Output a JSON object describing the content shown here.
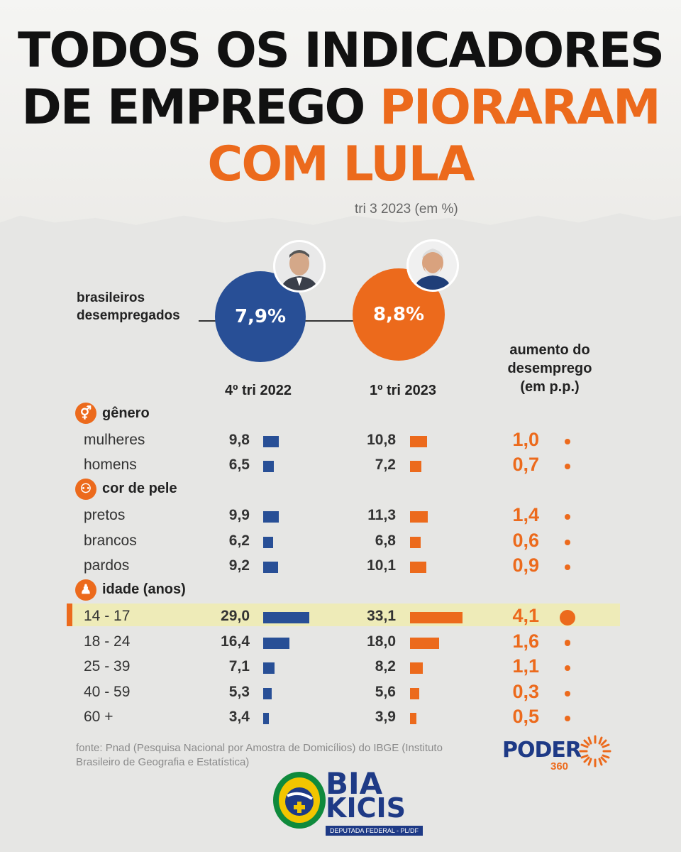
{
  "headline": {
    "line1": "TODOS OS INDICADORES",
    "line2_prefix": "DE EMPREGO ",
    "line2_highlight": "PIORARAM",
    "line3": "COM LULA"
  },
  "partial_note": "tri   3 2023 (em %)",
  "main_label_line1": "brasileiros",
  "main_label_line2": "desempregados",
  "columns": {
    "period1": "4º tri 2022",
    "period2": "1º tri 2023",
    "increase_line1": "aumento do",
    "increase_line2": "desemprego",
    "increase_line3": "(em p.p.)"
  },
  "colors": {
    "blue": "#284f96",
    "orange": "#ec6a1c"
  },
  "chart_data": {
    "type": "bar",
    "unit": "%",
    "summary": {
      "label": "brasileiros desempregados",
      "period1_value": "7,9%",
      "period2_value": "8,8%"
    },
    "sections": [
      {
        "title": "gênero",
        "icon": "gender-icon",
        "rows": [
          {
            "label": "mulheres",
            "v1": "9,8",
            "v2": "10,8",
            "inc": "1,0"
          },
          {
            "label": "homens",
            "v1": "6,5",
            "v2": "7,2",
            "inc": "0,7"
          }
        ]
      },
      {
        "title": "cor de pele",
        "icon": "people-icon",
        "rows": [
          {
            "label": "pretos",
            "v1": "9,9",
            "v2": "11,3",
            "inc": "1,4"
          },
          {
            "label": "brancos",
            "v1": "6,2",
            "v2": "6,8",
            "inc": "0,6"
          },
          {
            "label": "pardos",
            "v1": "9,2",
            "v2": "10,1",
            "inc": "0,9"
          }
        ]
      },
      {
        "title": "idade (anos)",
        "icon": "person-icon",
        "rows": [
          {
            "label": "14 - 17",
            "v1": "29,0",
            "v2": "33,1",
            "inc": "4,1"
          },
          {
            "label": "18 - 24",
            "v1": "16,4",
            "v2": "18,0",
            "inc": "1,6"
          },
          {
            "label": "25 - 39",
            "v1": "7,1",
            "v2": "8,2",
            "inc": "1,1"
          },
          {
            "label": "40 - 59",
            "v1": "5,3",
            "v2": "5,6",
            "inc": "0,3"
          },
          {
            "label": "60 +",
            "v1": "3,4",
            "v2": "3,9",
            "inc": "0,5"
          }
        ]
      }
    ]
  },
  "source": "fonte: Pnad (Pesquisa Nacional por Amostra de Domicílios) do IBGE (Instituto Brasileiro de Geografia e Estatística)",
  "logos": {
    "poder": "PODER",
    "poder_num": "360",
    "bia_line1": "BIA",
    "bia_line2": "KICIS",
    "bia_sub": "DEPUTADA FEDERAL - PL/DF"
  }
}
